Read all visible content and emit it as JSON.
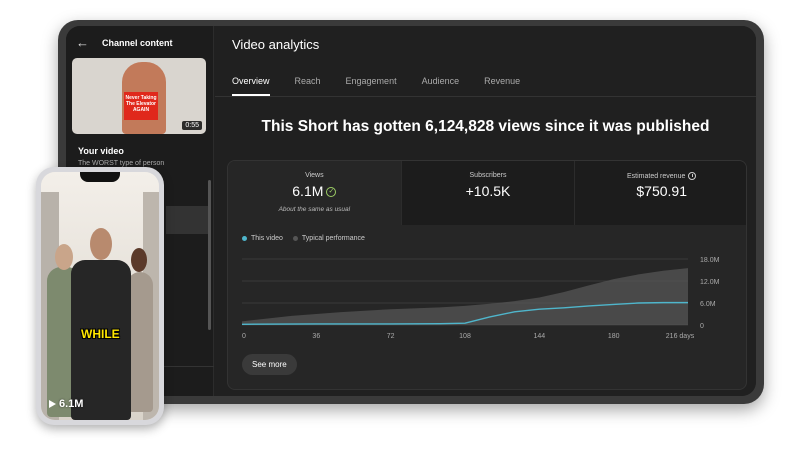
{
  "sidebar": {
    "header": "Channel content",
    "thumbnail_sign": "Never Taking The Elevator AGAIN",
    "thumbnail_duration": "0:55",
    "your_video_label": "Your video",
    "video_title": "The WORST type of person"
  },
  "main": {
    "title": "Video analytics",
    "tabs": [
      {
        "label": "Overview",
        "active": true
      },
      {
        "label": "Reach",
        "active": false
      },
      {
        "label": "Engagement",
        "active": false
      },
      {
        "label": "Audience",
        "active": false
      },
      {
        "label": "Revenue",
        "active": false
      }
    ],
    "headline": "This Short has gotten 6,124,828 views since it was published",
    "metrics": {
      "views_label": "Views",
      "views_value": "6.1M",
      "views_sub": "About the same as usual",
      "subscribers_label": "Subscribers",
      "subscribers_value": "+10.5K",
      "revenue_label": "Estimated revenue",
      "revenue_value": "$750.91"
    },
    "see_more": "See more"
  },
  "chart_data": {
    "type": "area",
    "series": [
      {
        "name": "This video",
        "color": "#4fb6cc",
        "x": [
          0,
          36,
          72,
          96,
          108,
          120,
          132,
          144,
          156,
          168,
          180,
          192,
          204,
          216
        ],
        "y": [
          0.2,
          0.3,
          0.3,
          0.35,
          0.5,
          2.2,
          3.6,
          4.3,
          4.7,
          5.2,
          5.6,
          6.0,
          6.1,
          6.1
        ]
      },
      {
        "name": "Typical performance",
        "color": "#555555",
        "x": [
          0,
          24,
          48,
          72,
          96,
          108,
          120,
          132,
          144,
          156,
          168,
          180,
          192,
          204,
          216
        ],
        "y": [
          1.0,
          2.5,
          3.5,
          4.3,
          4.8,
          5.2,
          5.8,
          6.5,
          7.5,
          9.0,
          10.8,
          12.5,
          13.8,
          14.8,
          15.5
        ]
      }
    ],
    "x_ticks": [
      "0",
      "36",
      "72",
      "108",
      "144",
      "180",
      "216 days"
    ],
    "y_ticks": [
      "0",
      "6.0M",
      "12.0M",
      "18.0M"
    ],
    "xlim": [
      0,
      216
    ],
    "ylim": [
      0,
      18
    ],
    "legend": "top-left"
  },
  "phone": {
    "subtitle": "WHILE",
    "views": "6.1M"
  }
}
